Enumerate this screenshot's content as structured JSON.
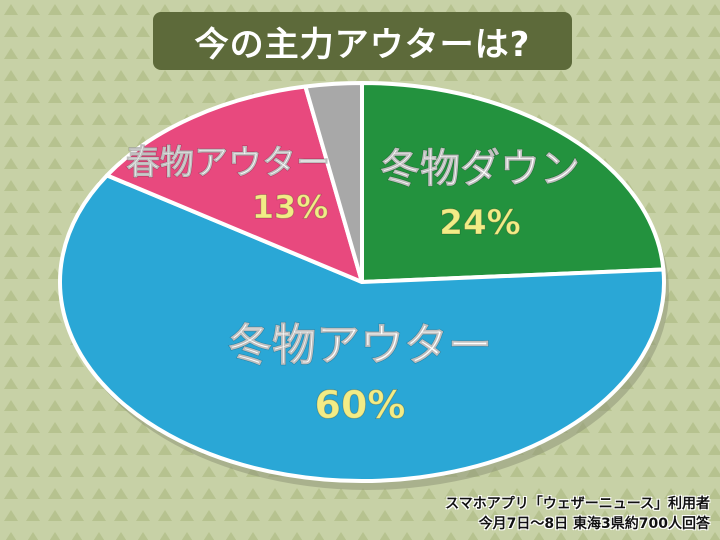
{
  "title": "今の主力アウターは?",
  "chart_data": {
    "type": "pie",
    "title": "今の主力アウターは?",
    "slices": [
      {
        "label": "冬物ダウン",
        "value": 24,
        "value_label": "24%",
        "color": "#23923e"
      },
      {
        "label": "冬物アウター",
        "value": 60,
        "value_label": "60%",
        "color": "#2aa7d6"
      },
      {
        "label": "春物アウター",
        "value": 13,
        "value_label": "13%",
        "color": "#e8497e"
      },
      {
        "label": "",
        "value": 3,
        "value_label": "",
        "color": "#a8a8a8"
      }
    ],
    "label_color": "#ffffff",
    "value_color": "#f2ec86"
  },
  "source": {
    "line1": "スマホアプリ「ウェザーニュース」利用者",
    "line2": "今月7日～8日 東海3県約700人回答"
  }
}
